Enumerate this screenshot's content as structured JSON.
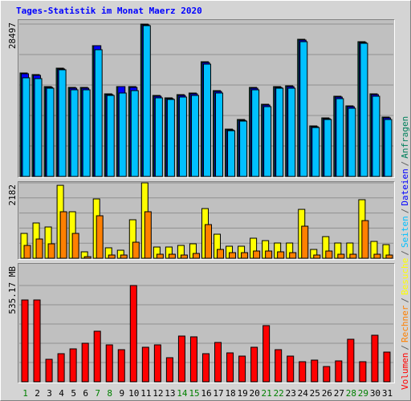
{
  "chart_data": [
    {
      "type": "bar",
      "title": "Tages-Statistik im Monat Maerz 2020",
      "ylim": [
        0,
        28497
      ],
      "yticks": [
        28497
      ],
      "series": [
        {
          "name": "Anfragen",
          "color": "#00805c",
          "values": [
            19350,
            19050,
            16800,
            20250,
            16650,
            16650,
            24450,
            15450,
            16800,
            16800,
            28497,
            15150,
            14700,
            15300,
            15600,
            21450,
            16050,
            8850,
            10650,
            16650,
            13500,
            16800,
            16950,
            25650,
            9450,
            10950,
            15000,
            13200,
            25200,
            15450,
            11100
          ]
        },
        {
          "name": "Dateien",
          "color": "#0000ff",
          "values": [
            19200,
            18900,
            16650,
            20100,
            16500,
            16500,
            24450,
            15300,
            16800,
            16650,
            28350,
            15000,
            14550,
            15150,
            15450,
            21300,
            15900,
            8700,
            10500,
            16500,
            13350,
            16650,
            16800,
            25500,
            9300,
            10800,
            14850,
            13050,
            25050,
            15300,
            10950
          ]
        },
        {
          "name": "Seiten",
          "color": "#00c0ff",
          "values": [
            18450,
            18300,
            16500,
            19950,
            16200,
            16200,
            23700,
            15150,
            15600,
            16050,
            28200,
            14700,
            14400,
            14850,
            15150,
            21000,
            15600,
            8550,
            10350,
            16200,
            13050,
            16500,
            16500,
            25200,
            9150,
            10650,
            14550,
            12750,
            24900,
            15000,
            10650
          ]
        }
      ]
    },
    {
      "type": "bar",
      "ylim": [
        0,
        2182
      ],
      "yticks": [
        2182
      ],
      "series": [
        {
          "name": "Besuche",
          "color": "#ffff00",
          "values": [
            719,
            1021,
            905,
            2111,
            1346,
            186,
            1717,
            302,
            232,
            1114,
            2182,
            325,
            325,
            371,
            418,
            1438,
            696,
            348,
            348,
            580,
            510,
            441,
            441,
            1415,
            255,
            626,
            441,
            441,
            1694,
            487,
            394
          ]
        },
        {
          "name": "Rechner",
          "color": "#ff8000",
          "values": [
            371,
            557,
            418,
            1346,
            719,
            46,
            1230,
            93,
            93,
            464,
            1346,
            116,
            116,
            93,
            139,
            974,
            255,
            162,
            162,
            209,
            209,
            186,
            162,
            928,
            93,
            209,
            116,
            116,
            1090,
            116,
            93
          ]
        }
      ]
    },
    {
      "type": "bar",
      "ylim": [
        0,
        535.17
      ],
      "yticks": [
        {
          "value": 535.17,
          "label": "535.17 MB"
        }
      ],
      "categories": [
        "1",
        "2",
        "3",
        "4",
        "5",
        "6",
        "7",
        "8",
        "9",
        "10",
        "11",
        "12",
        "13",
        "14",
        "15",
        "16",
        "17",
        "18",
        "19",
        "20",
        "21",
        "22",
        "23",
        "24",
        "25",
        "26",
        "27",
        "28",
        "29",
        "30",
        "31"
      ],
      "label_colors": [
        "#008000",
        "#000000",
        "#000000",
        "#000000",
        "#000000",
        "#000000",
        "#008000",
        "#008000",
        "#000000",
        "#000000",
        "#000000",
        "#000000",
        "#000000",
        "#008000",
        "#008000",
        "#000000",
        "#000000",
        "#000000",
        "#000000",
        "#000000",
        "#008000",
        "#008000",
        "#000000",
        "#000000",
        "#000000",
        "#000000",
        "#000000",
        "#008000",
        "#008000",
        "#000000",
        "#000000"
      ],
      "series": [
        {
          "name": "Volumen",
          "color": "#ff0000",
          "values": [
            454.9,
            454.9,
            124.9,
            156.1,
            182.9,
            214.1,
            281.0,
            205.2,
            178.4,
            535.17,
            191.8,
            205.2,
            133.8,
            254.2,
            249.8,
            156.1,
            218.5,
            160.6,
            142.7,
            191.8,
            312.2,
            178.4,
            142.7,
            111.5,
            120.4,
            84.7,
            116.0,
            236.4,
            111.5,
            258.7,
            165.0
          ]
        }
      ]
    }
  ],
  "legend_separator": "/"
}
